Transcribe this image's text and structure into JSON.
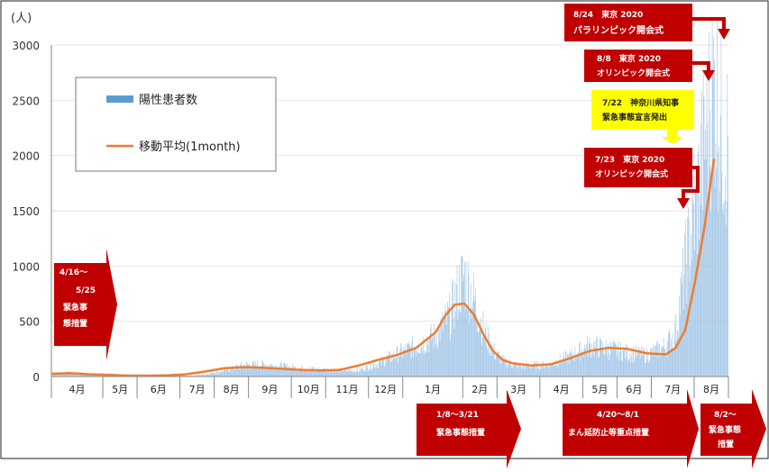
{
  "chart_data": {
    "type": "bar",
    "ylabel": "(人)",
    "ylim": [
      0,
      3000
    ],
    "yticks": [
      0,
      500,
      1000,
      1500,
      2000,
      2500,
      3000
    ],
    "months": [
      "4月",
      "5月",
      "6月",
      "7月",
      "8月",
      "9月",
      "10月",
      "11月",
      "12月",
      "1月",
      "2月",
      "3月",
      "4月",
      "5月",
      "6月",
      "7月",
      "8月"
    ],
    "legend": {
      "bar_label": "陽性患者数",
      "line_label": "移動平均(1month)"
    },
    "series": [
      {
        "name": "陽性患者数",
        "kind": "bar",
        "color": "#9dc3e6",
        "keypoints": [
          [
            0,
            30
          ],
          [
            4,
            40
          ],
          [
            8,
            25
          ],
          [
            12,
            20
          ],
          [
            16,
            10
          ],
          [
            20,
            5
          ],
          [
            24,
            5
          ],
          [
            28,
            8
          ],
          [
            32,
            20
          ],
          [
            36,
            60
          ],
          [
            40,
            110
          ],
          [
            44,
            120
          ],
          [
            48,
            100
          ],
          [
            52,
            80
          ],
          [
            56,
            70
          ],
          [
            60,
            60
          ],
          [
            64,
            60
          ],
          [
            68,
            130
          ],
          [
            72,
            220
          ],
          [
            76,
            300
          ],
          [
            80,
            400
          ],
          [
            83,
            600
          ],
          [
            85,
            900
          ],
          [
            86,
            980
          ],
          [
            88,
            750
          ],
          [
            90,
            450
          ],
          [
            92,
            250
          ],
          [
            94,
            150
          ],
          [
            98,
            100
          ],
          [
            104,
            120
          ],
          [
            108,
            200
          ],
          [
            112,
            300
          ],
          [
            116,
            270
          ],
          [
            120,
            230
          ],
          [
            124,
            210
          ],
          [
            128,
            300
          ],
          [
            130,
            450
          ],
          [
            132,
            1100
          ],
          [
            134,
            1600
          ],
          [
            136,
            2300
          ],
          [
            137,
            2600
          ],
          [
            138,
            2880
          ],
          [
            140,
            2300
          ]
        ]
      },
      {
        "name": "移動平均(1month)",
        "kind": "line",
        "color": "#ed7d31",
        "keypoints": [
          [
            0,
            25
          ],
          [
            4,
            30
          ],
          [
            8,
            20
          ],
          [
            12,
            15
          ],
          [
            16,
            8
          ],
          [
            20,
            8
          ],
          [
            24,
            10
          ],
          [
            28,
            20
          ],
          [
            32,
            45
          ],
          [
            36,
            75
          ],
          [
            40,
            85
          ],
          [
            44,
            80
          ],
          [
            48,
            70
          ],
          [
            52,
            60
          ],
          [
            56,
            55
          ],
          [
            60,
            60
          ],
          [
            64,
            100
          ],
          [
            68,
            150
          ],
          [
            72,
            195
          ],
          [
            76,
            260
          ],
          [
            80,
            400
          ],
          [
            82,
            550
          ],
          [
            84,
            650
          ],
          [
            86,
            660
          ],
          [
            88,
            560
          ],
          [
            90,
            380
          ],
          [
            92,
            230
          ],
          [
            94,
            150
          ],
          [
            96,
            120
          ],
          [
            100,
            100
          ],
          [
            104,
            110
          ],
          [
            108,
            165
          ],
          [
            112,
            230
          ],
          [
            116,
            260
          ],
          [
            120,
            250
          ],
          [
            124,
            210
          ],
          [
            128,
            200
          ],
          [
            130,
            260
          ],
          [
            132,
            420
          ],
          [
            134,
            850
          ],
          [
            136,
            1350
          ],
          [
            138,
            1970
          ]
        ]
      }
    ]
  },
  "annotations": {
    "top_events": [
      {
        "line1": "8/24　東京 2020",
        "line2": "パラリンピック開会式"
      },
      {
        "line1": "8/8　東京 2020",
        "line2": "オリンピック開会式"
      },
      {
        "line1": "7/22　神奈川県知事",
        "line2": "緊急事態宣言発出"
      },
      {
        "line1": "7/23　東京 2020",
        "line2": "オリンピック開会式"
      }
    ],
    "left_state": {
      "line1": "4/16～",
      "line2": "5/25",
      "line3": "緊急事",
      "line4": "態措置"
    },
    "bottom_states": [
      {
        "line1": "1/8～3/21",
        "line2": "緊急事態措置"
      },
      {
        "line1": "4/20～8/1",
        "line2": "まん延防止等重点措置"
      },
      {
        "line1": "8/2～",
        "line2": "緊急事態",
        "line3": "措置"
      }
    ]
  }
}
